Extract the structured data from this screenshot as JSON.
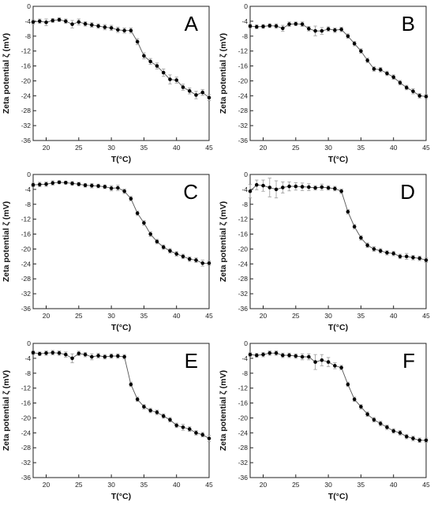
{
  "chart_data": [
    {
      "type": "line",
      "panel_label": "A",
      "xlabel": "T(°C)",
      "ylabel": "Zeta potential ζ (mV)",
      "xlim": [
        18,
        45
      ],
      "ylim": [
        -36,
        0
      ],
      "xticks": [
        20,
        25,
        30,
        35,
        40,
        45
      ],
      "yticks": [
        0,
        -4,
        -8,
        -12,
        -16,
        -20,
        -24,
        -28,
        -32,
        -36
      ],
      "x": [
        18,
        19,
        20,
        21,
        22,
        23,
        24,
        25,
        26,
        27,
        28,
        29,
        30,
        31,
        32,
        33,
        34,
        35,
        36,
        37,
        38,
        39,
        40,
        41,
        42,
        43,
        44,
        45
      ],
      "y": [
        -4.2,
        -4.0,
        -4.3,
        -3.8,
        -3.6,
        -4.0,
        -4.8,
        -4.2,
        -4.7,
        -5.0,
        -5.3,
        -5.6,
        -5.8,
        -6.3,
        -6.5,
        -6.5,
        -9.5,
        -13.3,
        -14.8,
        -16.0,
        -17.8,
        -19.6,
        -19.8,
        -21.7,
        -22.7,
        -23.8,
        -23.1,
        -24.5
      ],
      "yerr": [
        0.6,
        0.6,
        0.9,
        0.5,
        0.5,
        0.6,
        1.0,
        0.8,
        0.6,
        0.6,
        0.6,
        0.7,
        0.7,
        0.7,
        0.7,
        0.7,
        0.8,
        0.8,
        0.8,
        0.8,
        1.0,
        1.2,
        0.8,
        0.8,
        0.8,
        1.0,
        0.8,
        0.8
      ]
    },
    {
      "type": "line",
      "panel_label": "B",
      "xlabel": "T(°C)",
      "ylabel": "Zeta potential ζ (mV)",
      "xlim": [
        18,
        45
      ],
      "ylim": [
        -36,
        0
      ],
      "xticks": [
        20,
        25,
        30,
        35,
        40,
        45
      ],
      "yticks": [
        0,
        -4,
        -8,
        -12,
        -16,
        -20,
        -24,
        -28,
        -32,
        -36
      ],
      "x": [
        18,
        19,
        20,
        21,
        22,
        23,
        24,
        25,
        26,
        27,
        28,
        29,
        30,
        31,
        32,
        33,
        34,
        35,
        36,
        37,
        38,
        39,
        40,
        41,
        42,
        43,
        44,
        45
      ],
      "y": [
        -5.3,
        -5.5,
        -5.4,
        -5.2,
        -5.3,
        -5.9,
        -4.8,
        -4.7,
        -4.8,
        -6.0,
        -6.6,
        -6.6,
        -6.1,
        -6.4,
        -6.2,
        -8.0,
        -10.0,
        -12.0,
        -14.5,
        -16.8,
        -17.0,
        -18.0,
        -19.0,
        -20.5,
        -21.8,
        -22.8,
        -24.0,
        -24.2
      ],
      "yerr": [
        0.5,
        0.5,
        0.5,
        0.5,
        0.6,
        0.8,
        0.6,
        0.5,
        0.6,
        0.6,
        1.3,
        0.9,
        0.6,
        0.6,
        0.6,
        0.6,
        0.6,
        0.6,
        0.6,
        0.6,
        0.6,
        0.6,
        0.6,
        0.6,
        0.6,
        0.7,
        0.6,
        0.6
      ]
    },
    {
      "type": "line",
      "panel_label": "C",
      "xlabel": "T(°C)",
      "ylabel": "Zeta potential ζ (mV)",
      "xlim": [
        18,
        45
      ],
      "ylim": [
        -36,
        0
      ],
      "xticks": [
        20,
        25,
        30,
        35,
        40,
        45
      ],
      "yticks": [
        0,
        -4,
        -8,
        -12,
        -16,
        -20,
        -24,
        -28,
        -32,
        -36
      ],
      "x": [
        18,
        19,
        20,
        21,
        22,
        23,
        24,
        25,
        26,
        27,
        28,
        29,
        30,
        31,
        32,
        33,
        34,
        35,
        36,
        37,
        38,
        39,
        40,
        41,
        42,
        43,
        44,
        45
      ],
      "y": [
        -2.8,
        -2.7,
        -2.6,
        -2.3,
        -2.1,
        -2.2,
        -2.4,
        -2.6,
        -2.9,
        -3.0,
        -3.1,
        -3.3,
        -3.7,
        -3.6,
        -4.5,
        -6.5,
        -10.4,
        -13.0,
        -16.0,
        -18.0,
        -19.5,
        -20.5,
        -21.3,
        -22.0,
        -22.7,
        -23.0,
        -23.8,
        -23.8
      ],
      "yerr": [
        0.5,
        0.6,
        0.6,
        0.6,
        0.4,
        0.4,
        0.5,
        0.5,
        0.5,
        0.6,
        0.5,
        0.5,
        0.7,
        0.7,
        0.6,
        0.6,
        0.6,
        0.6,
        0.6,
        0.6,
        0.6,
        0.6,
        0.6,
        0.6,
        0.6,
        0.6,
        0.8,
        0.6
      ]
    },
    {
      "type": "line",
      "panel_label": "D",
      "xlabel": "T(°C)",
      "ylabel": "Zeta potential ζ (mV)",
      "xlim": [
        18,
        45
      ],
      "ylim": [
        -36,
        0
      ],
      "xticks": [
        20,
        25,
        30,
        35,
        40,
        45
      ],
      "yticks": [
        0,
        -4,
        -8,
        -12,
        -16,
        -20,
        -24,
        -28,
        -32,
        -36
      ],
      "x": [
        18,
        19,
        20,
        21,
        22,
        23,
        24,
        25,
        26,
        27,
        28,
        29,
        30,
        31,
        32,
        33,
        34,
        35,
        36,
        37,
        38,
        39,
        40,
        41,
        42,
        43,
        44,
        45
      ],
      "y": [
        -4.5,
        -2.8,
        -3.0,
        -3.5,
        -4.0,
        -3.5,
        -3.2,
        -3.2,
        -3.3,
        -3.4,
        -3.6,
        -3.4,
        -3.6,
        -3.8,
        -4.5,
        -10.0,
        -14.0,
        -17.0,
        -19.0,
        -20.0,
        -20.5,
        -21.0,
        -21.2,
        -22.0,
        -22.0,
        -22.3,
        -22.5,
        -23.0
      ],
      "yerr": [
        1.8,
        1.3,
        1.5,
        2.5,
        2.3,
        1.5,
        1.2,
        1.0,
        1.0,
        0.9,
        0.6,
        0.8,
        0.6,
        0.6,
        0.6,
        0.6,
        0.6,
        0.6,
        0.6,
        0.6,
        0.6,
        0.6,
        0.6,
        0.6,
        0.8,
        0.6,
        0.6,
        0.6
      ]
    },
    {
      "type": "line",
      "panel_label": "E",
      "xlabel": "T(°C)",
      "ylabel": "Zeta potential ζ (mV)",
      "xlim": [
        18,
        45
      ],
      "ylim": [
        -36,
        0
      ],
      "xticks": [
        20,
        25,
        30,
        35,
        40,
        45
      ],
      "yticks": [
        0,
        -4,
        -8,
        -12,
        -16,
        -20,
        -24,
        -28,
        -32,
        -36
      ],
      "x": [
        18,
        19,
        20,
        21,
        22,
        23,
        24,
        25,
        26,
        27,
        28,
        29,
        30,
        31,
        32,
        33,
        34,
        35,
        36,
        37,
        38,
        39,
        40,
        41,
        42,
        43,
        44,
        45
      ],
      "y": [
        -2.5,
        -2.8,
        -2.6,
        -2.5,
        -2.6,
        -3.0,
        -4.0,
        -2.7,
        -3.0,
        -3.6,
        -3.3,
        -3.6,
        -3.4,
        -3.4,
        -3.6,
        -11.0,
        -15.0,
        -17.0,
        -18.0,
        -18.5,
        -19.5,
        -20.5,
        -22.0,
        -22.5,
        -23.0,
        -24.0,
        -24.5,
        -25.5
      ],
      "yerr": [
        0.5,
        0.5,
        0.6,
        0.6,
        0.6,
        0.7,
        1.2,
        0.6,
        0.6,
        0.8,
        0.6,
        0.6,
        0.6,
        0.6,
        0.6,
        0.6,
        0.6,
        0.6,
        0.6,
        0.6,
        0.6,
        0.6,
        0.6,
        0.8,
        0.6,
        0.6,
        0.6,
        0.8
      ]
    },
    {
      "type": "line",
      "panel_label": "F",
      "xlabel": "T(°C)",
      "ylabel": "Zeta potential ζ (mV)",
      "xlim": [
        18,
        45
      ],
      "ylim": [
        -36,
        0
      ],
      "xticks": [
        20,
        25,
        30,
        35,
        40,
        45
      ],
      "yticks": [
        0,
        -4,
        -8,
        -12,
        -16,
        -20,
        -24,
        -28,
        -32,
        -36
      ],
      "x": [
        18,
        19,
        20,
        21,
        22,
        23,
        24,
        25,
        26,
        27,
        28,
        29,
        30,
        31,
        32,
        33,
        34,
        35,
        36,
        37,
        38,
        39,
        40,
        41,
        42,
        43,
        44,
        45
      ],
      "y": [
        -3.0,
        -3.2,
        -3.0,
        -2.6,
        -2.6,
        -3.2,
        -3.2,
        -3.4,
        -3.6,
        -3.6,
        -5.0,
        -4.5,
        -5.0,
        -6.0,
        -6.5,
        -11.0,
        -15.0,
        -17.0,
        -19.0,
        -20.5,
        -21.5,
        -22.5,
        -23.5,
        -24.0,
        -25.0,
        -25.5,
        -26.0,
        -26.0
      ],
      "yerr": [
        0.5,
        0.5,
        0.6,
        0.6,
        0.6,
        0.6,
        0.6,
        0.6,
        0.8,
        0.8,
        2.0,
        1.5,
        1.2,
        0.8,
        0.6,
        0.6,
        0.6,
        0.6,
        0.6,
        0.6,
        0.6,
        0.6,
        0.6,
        0.6,
        0.6,
        0.6,
        0.6,
        0.6
      ]
    }
  ]
}
